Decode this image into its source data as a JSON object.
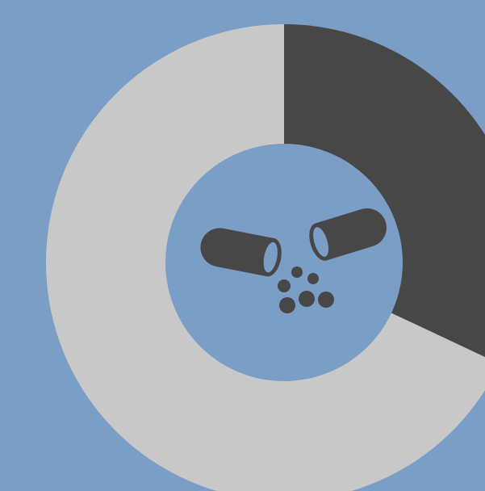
{
  "chart_data": {
    "type": "pie",
    "donut": true,
    "values": [
      32,
      68
    ],
    "colors": [
      "#474747",
      "#c8c8c8"
    ],
    "background": "#7b9ec6"
  }
}
